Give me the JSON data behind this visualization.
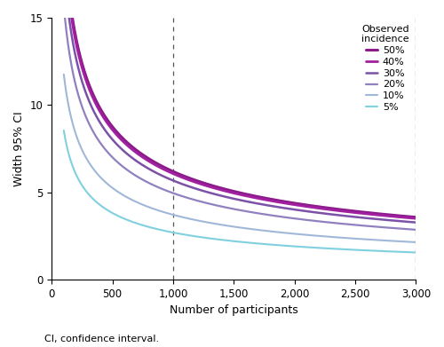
{
  "incidences": [
    0.5,
    0.4,
    0.3,
    0.2,
    0.1,
    0.05
  ],
  "labels": [
    "50%",
    "40%",
    "30%",
    "20%",
    "10%",
    "5%"
  ],
  "colors": [
    "#8b1a8b",
    "#a020a0",
    "#7b52a8",
    "#9080c0",
    "#a0b8d8",
    "#80d0e0"
  ],
  "n_min": 100,
  "n_max": 3000,
  "xlim": [
    0,
    3000
  ],
  "ylim": [
    0,
    15
  ],
  "xlabel": "Number of participants",
  "ylabel": "Width 95% CI",
  "vlines": [
    1000,
    3000
  ],
  "xticks": [
    0,
    500,
    1000,
    1500,
    2000,
    2500,
    3000
  ],
  "yticks": [
    0,
    5,
    10,
    15
  ],
  "legend_title_line1": "Observed",
  "legend_title_line2": "incidence",
  "footnote": "CI, confidence interval.",
  "linewidths": [
    2.2,
    2.0,
    1.8,
    1.6,
    1.5,
    1.5
  ]
}
